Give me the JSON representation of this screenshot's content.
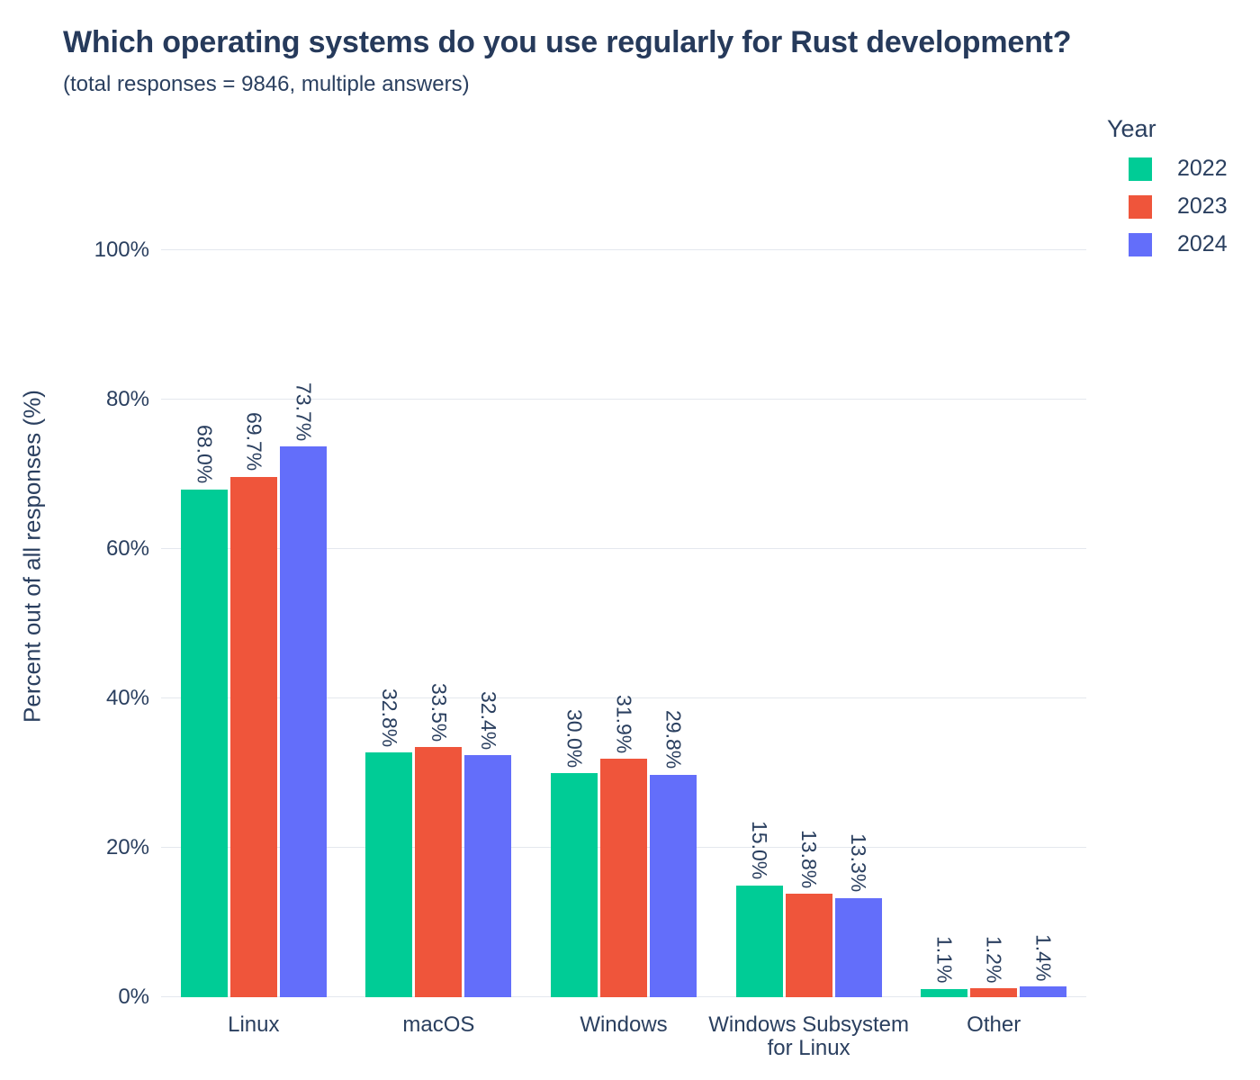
{
  "header": {
    "title": "Which operating systems do you use regularly for Rust development?",
    "subtitle": "(total responses = 9846, multiple answers)"
  },
  "legend": {
    "title": "Year",
    "items": [
      {
        "label": "2022",
        "color": "#00cc96"
      },
      {
        "label": "2023",
        "color": "#ef553b"
      },
      {
        "label": "2024",
        "color": "#636efa"
      }
    ]
  },
  "chart_data": {
    "type": "bar",
    "title": "Which operating systems do you use regularly for Rust development?",
    "subtitle": "(total responses = 9846, multiple answers)",
    "categories": [
      "Linux",
      "macOS",
      "Windows",
      "Windows Subsystem\nfor Linux",
      "Other"
    ],
    "series": [
      {
        "name": "2022",
        "color": "#00cc96",
        "values": [
          68.0,
          32.8,
          30.0,
          15.0,
          1.1
        ]
      },
      {
        "name": "2023",
        "color": "#ef553b",
        "values": [
          69.7,
          33.5,
          31.9,
          13.8,
          1.2
        ]
      },
      {
        "name": "2024",
        "color": "#636efa",
        "values": [
          73.7,
          32.4,
          29.8,
          13.3,
          1.4
        ]
      }
    ],
    "bar_labels": [
      [
        "68.0%",
        "69.7%",
        "73.7%"
      ],
      [
        "32.8%",
        "33.5%",
        "32.4%"
      ],
      [
        "30.0%",
        "31.9%",
        "29.8%"
      ],
      [
        "15.0%",
        "13.8%",
        "13.3%"
      ],
      [
        "1.1%",
        "1.2%",
        "1.4%"
      ]
    ],
    "xlabel": "",
    "ylabel": "Percent out of all responses (%)",
    "yticks": [
      {
        "value": 0,
        "label": "0%"
      },
      {
        "value": 20,
        "label": "20%"
      },
      {
        "value": 40,
        "label": "40%"
      },
      {
        "value": 60,
        "label": "60%"
      },
      {
        "value": 80,
        "label": "80%"
      },
      {
        "value": 100,
        "label": "100%"
      }
    ],
    "ylim": [
      0,
      100
    ],
    "grid": true,
    "legend_title": "Year",
    "legend_position": "top-right",
    "value_label_rotation": 90,
    "colors": {
      "text": "#2a3f5f",
      "gridline": "#e4e8ee",
      "background": "#ffffff"
    }
  }
}
